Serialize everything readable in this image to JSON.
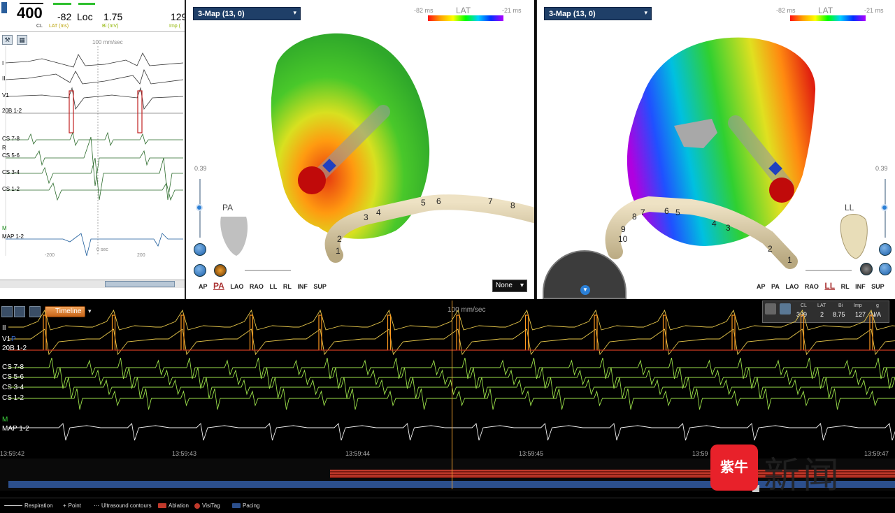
{
  "readout": {
    "cl_value": "400",
    "cl_label": "CL",
    "lat_value": "-82",
    "loc_value": "Loc",
    "lat_label": "LAT (ms)",
    "bi_value": "1.75",
    "bi_label": "Bi (mV)",
    "imp_value": "129",
    "imp_label": "Imp ("
  },
  "left_ecg": {
    "speed": "100 mm/sec",
    "zero_label": "0 sec",
    "tick_neg": "-200",
    "tick_pos": "200",
    "leads": [
      "I",
      "II",
      "V1",
      "20B 1-2",
      "CS 7-8",
      "R",
      "CS 5-6",
      "CS 3-4",
      "CS 1-2",
      "M",
      "MAP 1-2"
    ]
  },
  "map_a": {
    "dropdown": "3-Map (13, 0)",
    "lat_title": "LAT",
    "lat_min": "-82 ms",
    "lat_max": "-21 ms",
    "orientation": "PA",
    "scale_value": "0.39",
    "electrodes": [
      "1",
      "2",
      "3",
      "4",
      "5",
      "6",
      "7",
      "8"
    ],
    "view_buttons": [
      "AP",
      "PA",
      "LAO",
      "RAO",
      "LL",
      "RL",
      "INF",
      "SUP"
    ],
    "active_view": "PA",
    "none_dropdown": "None"
  },
  "map_b": {
    "dropdown": "3-Map (13, 0)",
    "lat_title": "LAT",
    "lat_min": "-82 ms",
    "lat_max": "-21 ms",
    "orientation": "LL",
    "scale_value": "0.39",
    "electrodes": [
      "1",
      "2",
      "3",
      "4",
      "5",
      "6",
      "7",
      "8",
      "9",
      "10"
    ],
    "view_buttons": [
      "AP",
      "PA",
      "LAO",
      "RAO",
      "LL",
      "RL",
      "INF",
      "SUP"
    ],
    "active_view": "LL"
  },
  "bottom": {
    "timeline_label": "Timeline",
    "speed": "100 mm/sec",
    "leads": [
      "II",
      "V1",
      "P",
      "20B 1-2",
      "CS 7-8",
      "CS 5-6",
      "CS 3-4",
      "CS 1-2",
      "M",
      "MAP 1-2"
    ],
    "stats": {
      "cl_h": "CL",
      "cl_v": "399",
      "lat_h": "LAT",
      "lat_v": "2",
      "bi_h": "Bi",
      "bi_v": "8.75",
      "imp_h": "Imp",
      "imp_v": "127",
      "g_h": "g",
      "g_v": "N/A"
    },
    "times": [
      "13:59:42",
      "13:59:43",
      "13:59:44",
      "13:59:45",
      "13:59",
      "13:59:47"
    ]
  },
  "legend": {
    "respiration": "Respiration",
    "point": "Point",
    "ultrasound": "Ultrasound contours",
    "ablation": "Ablation",
    "visitag": "VisiTag",
    "pacing": "Pacing"
  },
  "watermark": {
    "logo": "紫牛",
    "text": "新闻"
  },
  "colors": {
    "map_header": "#1f3f68",
    "ablation": "#c0392b",
    "pacing": "#2c4f8c",
    "yellow_trace": "#e6c64a",
    "green_trace": "#9be04a"
  }
}
